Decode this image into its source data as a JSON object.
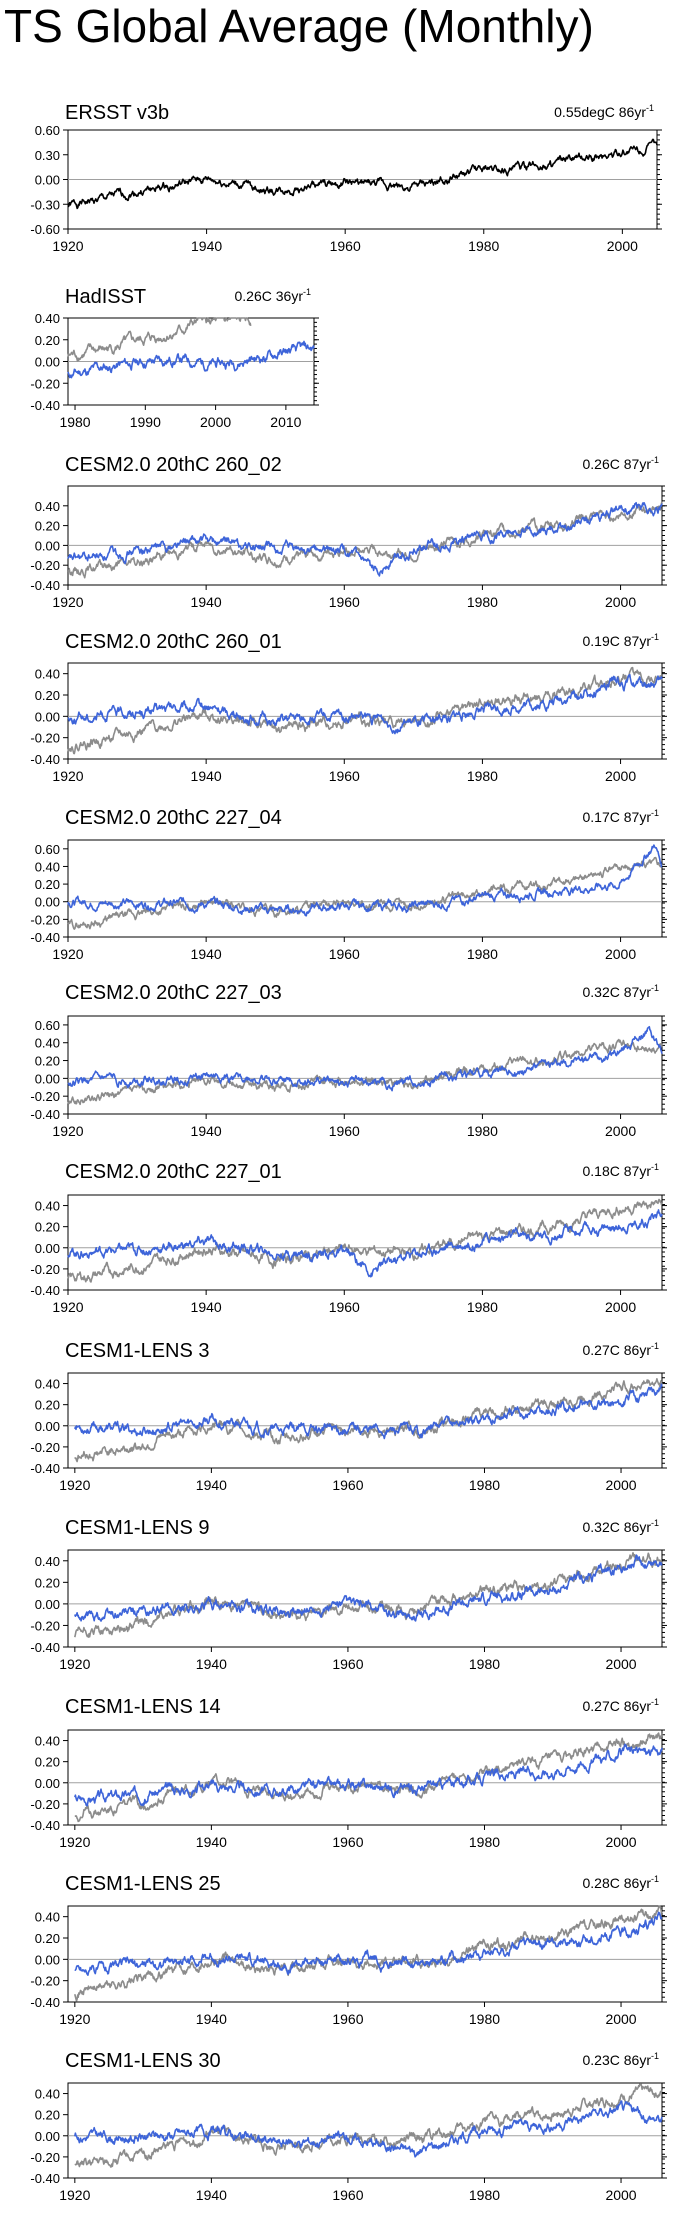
{
  "figure": {
    "title": "TS Global Average (Monthly)"
  },
  "colors": {
    "obs": "#8c8c8c",
    "model": "#3d64d9",
    "ref": "#000000",
    "zero": "#a0a0a0"
  },
  "chart_data": [
    {
      "type": "line",
      "name": "ERSST v3b",
      "trend_value": "0.55degC 86yr",
      "trend_exp": "-1",
      "xlim": [
        1920,
        2005
      ],
      "ylim": [
        -0.6,
        0.6
      ],
      "yticks": [
        "0.60",
        "0.30",
        "0.00",
        "-0.30",
        "-0.60"
      ],
      "xticks": [
        "1920",
        "1940",
        "1960",
        "1980",
        "2000"
      ],
      "series": [
        {
          "name": "ERSST v3b",
          "color": "ref",
          "x": [
            1920,
            1930,
            1940,
            1950,
            1960,
            1970,
            1980,
            1990,
            2000,
            2005
          ],
          "y": [
            -0.32,
            -0.15,
            0.0,
            -0.14,
            -0.04,
            -0.1,
            0.12,
            0.18,
            0.33,
            0.4
          ]
        }
      ]
    },
    {
      "type": "line",
      "name": "HadISST",
      "trend_value": "0.26C 36yr",
      "trend_exp": "-1",
      "xlim": [
        1979,
        2014
      ],
      "ylim": [
        -0.4,
        0.4
      ],
      "yticks": [
        "0.40",
        "0.20",
        "0.00",
        "-0.20",
        "-0.40"
      ],
      "xticks": [
        "1980",
        "1990",
        "2000",
        "2010"
      ],
      "series": [
        {
          "name": "HadISST",
          "color": "obs",
          "x": [
            1979,
            1985,
            1990,
            1995,
            1998,
            2000,
            2005
          ],
          "y": [
            0.05,
            0.12,
            0.2,
            0.28,
            0.38,
            0.35,
            0.38
          ]
        },
        {
          "name": "model",
          "color": "model",
          "x": [
            1979,
            1985,
            1990,
            1995,
            2000,
            2005,
            2010,
            2014
          ],
          "y": [
            -0.12,
            -0.05,
            0.0,
            0.02,
            -0.03,
            0.02,
            0.08,
            0.12
          ]
        }
      ]
    },
    {
      "type": "line",
      "name": "CESM2.0 20thC 260_02",
      "trend_value": "0.26C 87yr",
      "trend_exp": "-1",
      "xlim": [
        1920,
        2006
      ],
      "ylim": [
        -0.4,
        0.6
      ],
      "yticks": [
        "0.40",
        "0.20",
        "0.00",
        "-0.20",
        "-0.40"
      ],
      "xticks": [
        "1920",
        "1940",
        "1960",
        "1980",
        "2000"
      ],
      "series": [
        {
          "name": "obs",
          "color": "obs",
          "x": [
            1920,
            1930,
            1940,
            1950,
            1960,
            1970,
            1980,
            1990,
            2000,
            2006
          ],
          "y": [
            -0.25,
            -0.18,
            0.02,
            -0.16,
            -0.05,
            -0.08,
            0.12,
            0.2,
            0.32,
            0.4
          ]
        },
        {
          "name": "model",
          "color": "model",
          "x": [
            1920,
            1930,
            1940,
            1950,
            1960,
            1964,
            1970,
            1980,
            1990,
            2000,
            2006
          ],
          "y": [
            -0.15,
            -0.05,
            0.05,
            -0.05,
            -0.05,
            -0.28,
            -0.02,
            0.08,
            0.15,
            0.35,
            0.38
          ]
        }
      ]
    },
    {
      "type": "line",
      "name": "CESM2.0 20thC 260_01",
      "trend_value": "0.19C 87yr",
      "trend_exp": "-1",
      "xlim": [
        1920,
        2006
      ],
      "ylim": [
        -0.4,
        0.5
      ],
      "yticks": [
        "0.40",
        "0.20",
        "0.00",
        "-0.20",
        "-0.40"
      ],
      "xticks": [
        "1920",
        "1940",
        "1960",
        "1980",
        "2000"
      ],
      "series": [
        {
          "name": "obs",
          "color": "obs",
          "x": [
            1920,
            1930,
            1940,
            1950,
            1960,
            1970,
            1980,
            1990,
            2000,
            2006
          ],
          "y": [
            -0.28,
            -0.15,
            0.02,
            -0.12,
            -0.05,
            -0.05,
            0.12,
            0.2,
            0.35,
            0.38
          ]
        },
        {
          "name": "model",
          "color": "model",
          "x": [
            1920,
            1930,
            1940,
            1950,
            1960,
            1970,
            1980,
            1990,
            2000,
            2006
          ],
          "y": [
            -0.02,
            0.05,
            0.08,
            -0.05,
            0.0,
            -0.08,
            0.05,
            0.12,
            0.32,
            0.3
          ]
        }
      ]
    },
    {
      "type": "line",
      "name": "CESM2.0 20thC 227_04",
      "trend_value": "0.17C 87yr",
      "trend_exp": "-1",
      "xlim": [
        1920,
        2006
      ],
      "ylim": [
        -0.4,
        0.7
      ],
      "yticks": [
        "0.60",
        "0.40",
        "0.20",
        "0.00",
        "-0.20",
        "-0.40"
      ],
      "xticks": [
        "1920",
        "1940",
        "1960",
        "1980",
        "2000"
      ],
      "series": [
        {
          "name": "obs",
          "color": "obs",
          "x": [
            1920,
            1930,
            1940,
            1950,
            1960,
            1970,
            1980,
            1990,
            2000,
            2006
          ],
          "y": [
            -0.28,
            -0.15,
            0.0,
            -0.12,
            -0.02,
            -0.05,
            0.12,
            0.2,
            0.4,
            0.45
          ]
        },
        {
          "name": "model",
          "color": "model",
          "x": [
            1920,
            1930,
            1940,
            1950,
            1960,
            1970,
            1980,
            1990,
            2000,
            2005,
            2006
          ],
          "y": [
            0.0,
            -0.02,
            -0.02,
            -0.1,
            -0.05,
            -0.05,
            0.05,
            0.12,
            0.2,
            0.65,
            0.4
          ]
        }
      ]
    },
    {
      "type": "line",
      "name": "CESM2.0 20thC 227_03",
      "trend_value": "0.32C 87yr",
      "trend_exp": "-1",
      "xlim": [
        1920,
        2006
      ],
      "ylim": [
        -0.4,
        0.7
      ],
      "yticks": [
        "0.60",
        "0.40",
        "0.20",
        "0.00",
        "-0.20",
        "-0.40"
      ],
      "xticks": [
        "1920",
        "1940",
        "1960",
        "1980",
        "2000"
      ],
      "series": [
        {
          "name": "obs",
          "color": "obs",
          "x": [
            1920,
            1930,
            1940,
            1950,
            1960,
            1970,
            1980,
            1990,
            2000,
            2006
          ],
          "y": [
            -0.28,
            -0.15,
            0.0,
            -0.1,
            -0.02,
            -0.05,
            0.12,
            0.2,
            0.38,
            0.32
          ]
        },
        {
          "name": "model",
          "color": "model",
          "x": [
            1920,
            1930,
            1940,
            1950,
            1960,
            1970,
            1980,
            1990,
            2000,
            2004,
            2006
          ],
          "y": [
            -0.05,
            -0.02,
            0.02,
            -0.02,
            -0.05,
            -0.05,
            0.05,
            0.15,
            0.3,
            0.55,
            0.3
          ]
        }
      ]
    },
    {
      "type": "line",
      "name": "CESM2.0 20thC 227_01",
      "trend_value": "0.18C 87yr",
      "trend_exp": "-1",
      "xlim": [
        1920,
        2006
      ],
      "ylim": [
        -0.4,
        0.5
      ],
      "yticks": [
        "0.40",
        "0.20",
        "0.00",
        "-0.20",
        "-0.40"
      ],
      "xticks": [
        "1920",
        "1940",
        "1960",
        "1980",
        "2000"
      ],
      "series": [
        {
          "name": "obs",
          "color": "obs",
          "x": [
            1920,
            1930,
            1940,
            1950,
            1960,
            1970,
            1980,
            1990,
            2000,
            2006
          ],
          "y": [
            -0.3,
            -0.18,
            0.0,
            -0.12,
            -0.02,
            -0.05,
            0.12,
            0.2,
            0.38,
            0.42
          ]
        },
        {
          "name": "model",
          "color": "model",
          "x": [
            1920,
            1930,
            1940,
            1950,
            1960,
            1964,
            1970,
            1980,
            1990,
            2000,
            2006
          ],
          "y": [
            -0.05,
            -0.02,
            0.05,
            -0.05,
            -0.05,
            -0.22,
            -0.05,
            0.08,
            0.12,
            0.2,
            0.32
          ]
        }
      ]
    },
    {
      "type": "line",
      "name": "CESM1-LENS 3",
      "trend_value": "0.27C 86yr",
      "trend_exp": "-1",
      "xlim": [
        1919,
        2006
      ],
      "ylim": [
        -0.4,
        0.5
      ],
      "yticks": [
        "0.40",
        "0.20",
        "0.00",
        "-0.20",
        "-0.40"
      ],
      "xticks": [
        "1920",
        "1940",
        "1960",
        "1980",
        "2000"
      ],
      "series": [
        {
          "name": "obs",
          "color": "obs",
          "x": [
            1920,
            1930,
            1940,
            1950,
            1960,
            1970,
            1980,
            1990,
            2000,
            2006
          ],
          "y": [
            -0.3,
            -0.18,
            0.02,
            -0.12,
            -0.02,
            -0.05,
            0.12,
            0.2,
            0.38,
            0.42
          ]
        },
        {
          "name": "model",
          "color": "model",
          "x": [
            1920,
            1930,
            1940,
            1950,
            1960,
            1970,
            1980,
            1990,
            2000,
            2006
          ],
          "y": [
            0.0,
            -0.05,
            0.05,
            -0.05,
            -0.02,
            -0.05,
            0.08,
            0.15,
            0.22,
            0.4
          ]
        }
      ]
    },
    {
      "type": "line",
      "name": "CESM1-LENS 9",
      "trend_value": "0.32C 86yr",
      "trend_exp": "-1",
      "xlim": [
        1919,
        2006
      ],
      "ylim": [
        -0.4,
        0.5
      ],
      "yticks": [
        "0.40",
        "0.20",
        "0.00",
        "-0.20",
        "-0.40"
      ],
      "xticks": [
        "1920",
        "1940",
        "1960",
        "1980",
        "2000"
      ],
      "series": [
        {
          "name": "obs",
          "color": "obs",
          "x": [
            1920,
            1930,
            1940,
            1950,
            1960,
            1970,
            1980,
            1990,
            2000,
            2006
          ],
          "y": [
            -0.3,
            -0.18,
            0.02,
            -0.12,
            -0.02,
            -0.05,
            0.12,
            0.2,
            0.38,
            0.42
          ]
        },
        {
          "name": "model",
          "color": "model",
          "x": [
            1920,
            1930,
            1940,
            1950,
            1960,
            1970,
            1980,
            1990,
            2000,
            2006
          ],
          "y": [
            -0.12,
            -0.08,
            0.0,
            -0.08,
            -0.02,
            -0.1,
            0.05,
            0.12,
            0.35,
            0.4
          ]
        }
      ]
    },
    {
      "type": "line",
      "name": "CESM1-LENS 14",
      "trend_value": "0.27C 86yr",
      "trend_exp": "-1",
      "xlim": [
        1919,
        2006
      ],
      "ylim": [
        -0.4,
        0.5
      ],
      "yticks": [
        "0.40",
        "0.20",
        "0.00",
        "-0.20",
        "-0.40"
      ],
      "xticks": [
        "1920",
        "1940",
        "1960",
        "1980",
        "2000"
      ],
      "series": [
        {
          "name": "obs",
          "color": "obs",
          "x": [
            1920,
            1930,
            1940,
            1950,
            1960,
            1970,
            1980,
            1990,
            2000,
            2006
          ],
          "y": [
            -0.3,
            -0.18,
            0.02,
            -0.12,
            -0.02,
            -0.05,
            0.12,
            0.2,
            0.38,
            0.42
          ]
        },
        {
          "name": "model",
          "color": "model",
          "x": [
            1920,
            1930,
            1940,
            1950,
            1960,
            1970,
            1980,
            1990,
            2000,
            2006
          ],
          "y": [
            -0.15,
            -0.1,
            -0.02,
            -0.08,
            -0.02,
            -0.05,
            0.05,
            0.12,
            0.28,
            0.3
          ]
        }
      ]
    },
    {
      "type": "line",
      "name": "CESM1-LENS 25",
      "trend_value": "0.28C 86yr",
      "trend_exp": "-1",
      "xlim": [
        1919,
        2006
      ],
      "ylim": [
        -0.4,
        0.5
      ],
      "yticks": [
        "0.40",
        "0.20",
        "0.00",
        "-0.20",
        "-0.40"
      ],
      "xticks": [
        "1920",
        "1940",
        "1960",
        "1980",
        "2000"
      ],
      "series": [
        {
          "name": "obs",
          "color": "obs",
          "x": [
            1920,
            1930,
            1940,
            1950,
            1960,
            1970,
            1980,
            1990,
            2000,
            2006
          ],
          "y": [
            -0.3,
            -0.18,
            0.02,
            -0.12,
            -0.02,
            -0.05,
            0.12,
            0.2,
            0.38,
            0.42
          ]
        },
        {
          "name": "model",
          "color": "model",
          "x": [
            1920,
            1930,
            1940,
            1950,
            1960,
            1970,
            1980,
            1990,
            2000,
            2006
          ],
          "y": [
            -0.1,
            -0.05,
            0.02,
            -0.05,
            0.0,
            -0.05,
            0.08,
            0.15,
            0.25,
            0.38
          ]
        }
      ]
    },
    {
      "type": "line",
      "name": "CESM1-LENS 30",
      "trend_value": "0.23C 86yr",
      "trend_exp": "-1",
      "xlim": [
        1919,
        2006
      ],
      "ylim": [
        -0.4,
        0.5
      ],
      "yticks": [
        "0.40",
        "0.20",
        "0.00",
        "-0.20",
        "-0.40"
      ],
      "xticks": [
        "1920",
        "1940",
        "1960",
        "1980",
        "2000"
      ],
      "series": [
        {
          "name": "obs",
          "color": "obs",
          "x": [
            1920,
            1930,
            1940,
            1950,
            1960,
            1970,
            1980,
            1990,
            2000,
            2006
          ],
          "y": [
            -0.3,
            -0.18,
            0.02,
            -0.12,
            -0.02,
            -0.05,
            0.12,
            0.2,
            0.38,
            0.42
          ]
        },
        {
          "name": "model",
          "color": "model",
          "x": [
            1920,
            1930,
            1940,
            1950,
            1960,
            1970,
            1980,
            1990,
            2000,
            2006
          ],
          "y": [
            0.0,
            -0.02,
            0.05,
            -0.08,
            -0.02,
            -0.15,
            0.05,
            0.12,
            0.25,
            0.15
          ]
        }
      ]
    }
  ]
}
